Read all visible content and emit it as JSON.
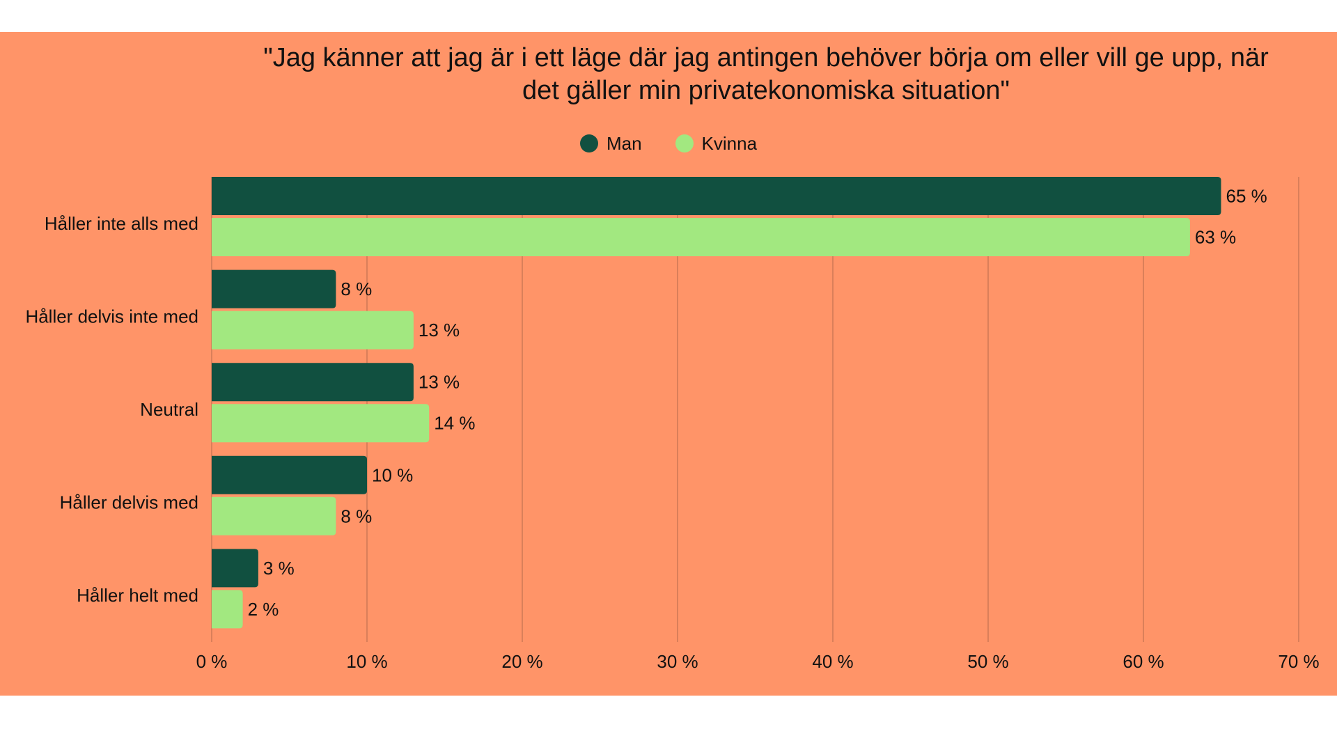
{
  "colors": {
    "background": "#ff9468",
    "man": "#115040",
    "kvinna": "#a2e880",
    "grid": "#b46a4c",
    "text": "#111111"
  },
  "chart_data": {
    "type": "bar",
    "orientation": "horizontal",
    "title": "\"Jag känner att jag är i ett läge där jag antingen behöver börja om eller vill ge upp, när det gäller min privatekonomiska situation\"",
    "title_lines": [
      "\"Jag känner att jag är i ett läge där jag antingen behöver börja om eller vill ge upp, när",
      "det gäller min privatekonomiska situation\""
    ],
    "categories": [
      "Håller inte alls med",
      "Håller delvis inte med",
      "Neutral",
      "Håller delvis med",
      "Håller helt med"
    ],
    "series": [
      {
        "name": "Man",
        "color": "#115040",
        "values": [
          65,
          8,
          13,
          10,
          3
        ]
      },
      {
        "name": "Kvinna",
        "color": "#a2e880",
        "values": [
          63,
          13,
          14,
          8,
          2
        ]
      }
    ],
    "xlim": [
      0,
      70
    ],
    "xticks": [
      0,
      10,
      20,
      30,
      40,
      50,
      60,
      70
    ],
    "tick_suffix": " %",
    "value_suffix": " %",
    "grid": true,
    "legend_position": "top-center",
    "xlabel": "",
    "ylabel": ""
  }
}
